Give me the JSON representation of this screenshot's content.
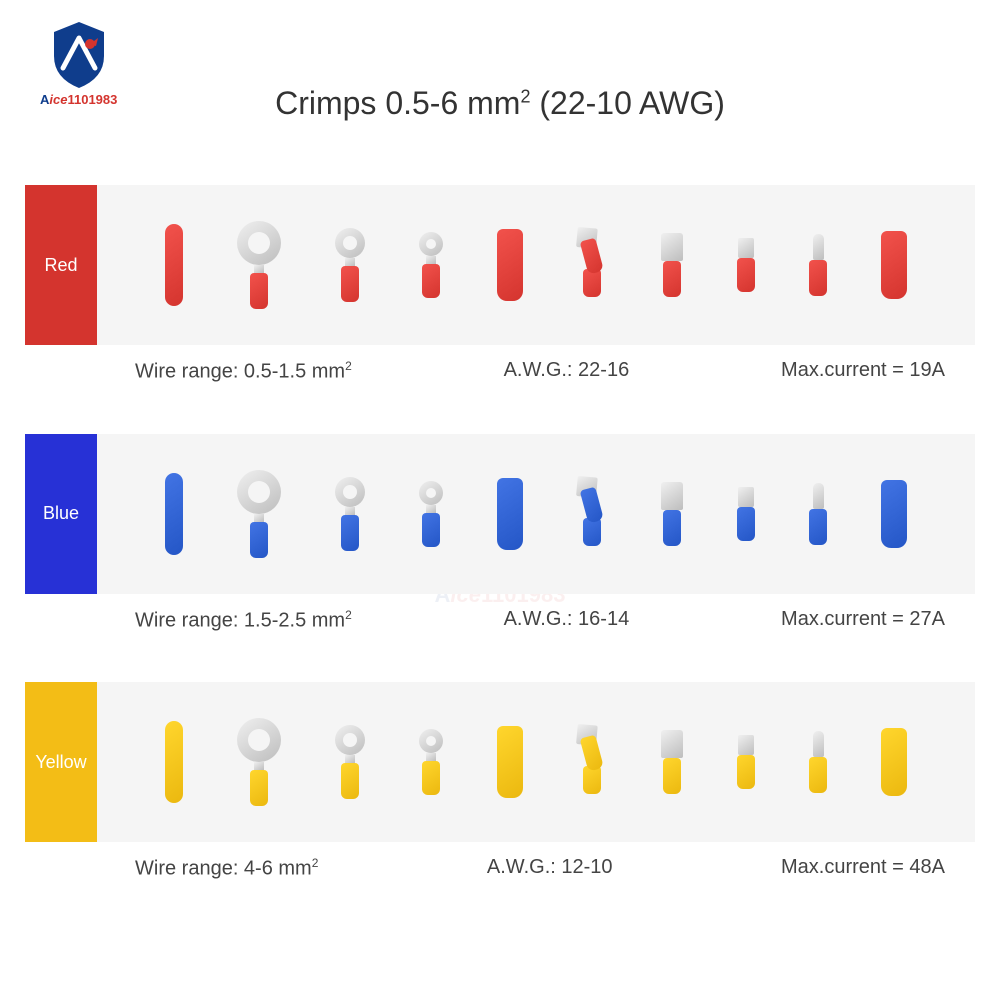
{
  "brand": {
    "shield_base_color": "#0f3d8c",
    "shield_accent_color": "#d4342e",
    "text_blue": "A",
    "text_red_italic": "ice",
    "text_red_num": "1101983"
  },
  "title": {
    "prefix": "Crimps 0.5-6 mm",
    "sup": "2",
    "suffix": "(22-10 AWG)",
    "fontsize": 32,
    "color": "#333333"
  },
  "rows": [
    {
      "name": "Red",
      "label_bg": "#d4342e",
      "crimp_color": "#d4342e",
      "wire_range": "Wire range: 0.5-1.5 mm",
      "wire_sup": "2",
      "awg": "A.W.G.: 22-16",
      "max_current": "Max.current = 19A"
    },
    {
      "name": "Blue",
      "label_bg": "#2731d6",
      "crimp_color": "#2456c6",
      "wire_range": "Wire range: 1.5-2.5 mm",
      "wire_sup": "2",
      "awg": "A.W.G.: 16-14",
      "max_current": "Max.current = 27A"
    },
    {
      "name": "Yellow",
      "label_bg": "#f3bd16",
      "crimp_color": "#ebb80f",
      "wire_range": "Wire range: 4-6 mm",
      "wire_sup": "2",
      "awg": "A.W.G.: 12-10",
      "max_current": "Max.current = 48A"
    }
  ],
  "terminals": [
    {
      "type": "butt"
    },
    {
      "type": "ring",
      "ring_d": 44,
      "hole_d": 22,
      "barrel_h": 36
    },
    {
      "type": "ring",
      "ring_d": 30,
      "hole_d": 14,
      "barrel_h": 36
    },
    {
      "type": "ring",
      "ring_d": 24,
      "hole_d": 10,
      "barrel_h": 34
    },
    {
      "type": "full_insul",
      "h": 72
    },
    {
      "type": "piggy"
    },
    {
      "type": "spade",
      "barrel_h": 36
    },
    {
      "type": "spade_small",
      "barrel_h": 34
    },
    {
      "type": "bullet",
      "barrel_h": 36
    },
    {
      "type": "full_insul",
      "h": 68
    }
  ],
  "layout": {
    "row_bg": "#f5f5f5",
    "metal_light": "#f0f0f0",
    "metal_dark": "#bdbdbd",
    "spec_fontsize": 20
  }
}
